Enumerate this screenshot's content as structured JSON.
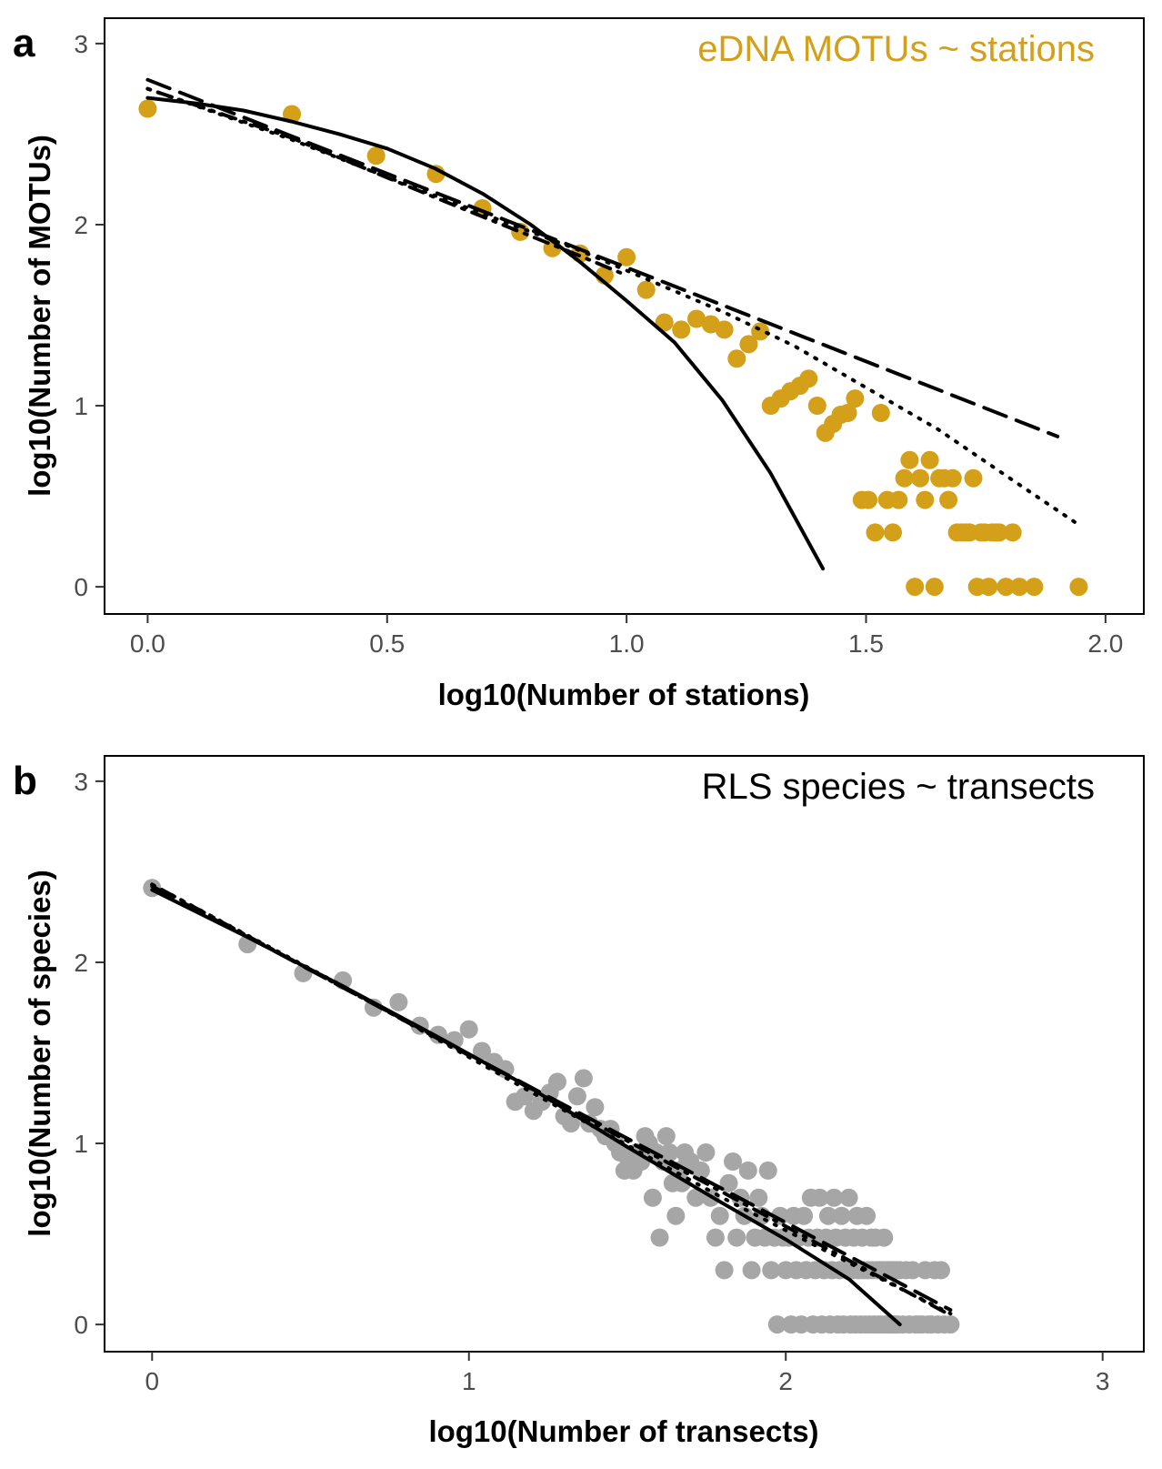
{
  "chart_data": [
    {
      "type": "scatter",
      "panel_label": "a",
      "annotation": "eDNA MOTUs ~ stations",
      "xlabel": "log10(Number of stations)",
      "ylabel": "log10(Number of MOTUs)",
      "xlim": [
        -0.09,
        2.08
      ],
      "ylim": [
        -0.15,
        3.14
      ],
      "xticks": [
        0.0,
        0.5,
        1.0,
        1.5,
        2.0
      ],
      "xtick_labels": [
        "0.0",
        "0.5",
        "1.0",
        "1.5",
        "2.0"
      ],
      "yticks": [
        0,
        1,
        2,
        3
      ],
      "ytick_labels": [
        "0",
        "1",
        "2",
        "3"
      ],
      "grid": false,
      "point_color": "#D4A019",
      "points": [
        [
          0.0,
          2.64
        ],
        [
          0.301,
          2.61
        ],
        [
          0.477,
          2.38
        ],
        [
          0.602,
          2.28
        ],
        [
          0.699,
          2.09
        ],
        [
          0.778,
          1.96
        ],
        [
          0.845,
          1.87
        ],
        [
          0.903,
          1.84
        ],
        [
          0.954,
          1.72
        ],
        [
          1.0,
          1.82
        ],
        [
          1.041,
          1.64
        ],
        [
          1.079,
          1.46
        ],
        [
          1.114,
          1.42
        ],
        [
          1.146,
          1.48
        ],
        [
          1.176,
          1.45
        ],
        [
          1.204,
          1.42
        ],
        [
          1.23,
          1.26
        ],
        [
          1.255,
          1.34
        ],
        [
          1.279,
          1.41
        ],
        [
          1.301,
          1.0
        ],
        [
          1.322,
          1.04
        ],
        [
          1.342,
          1.08
        ],
        [
          1.362,
          1.11
        ],
        [
          1.38,
          1.15
        ],
        [
          1.398,
          1.0
        ],
        [
          1.415,
          0.85
        ],
        [
          1.431,
          0.9
        ],
        [
          1.447,
          0.95
        ],
        [
          1.462,
          0.96
        ],
        [
          1.477,
          1.04
        ],
        [
          1.491,
          0.48
        ],
        [
          1.505,
          0.48
        ],
        [
          1.519,
          0.3
        ],
        [
          1.531,
          0.96
        ],
        [
          1.544,
          0.48
        ],
        [
          1.556,
          0.3
        ],
        [
          1.568,
          0.48
        ],
        [
          1.58,
          0.6
        ],
        [
          1.591,
          0.7
        ],
        [
          1.602,
          0.0
        ],
        [
          1.613,
          0.6
        ],
        [
          1.623,
          0.48
        ],
        [
          1.633,
          0.7
        ],
        [
          1.643,
          0.0
        ],
        [
          1.653,
          0.6
        ],
        [
          1.663,
          0.6
        ],
        [
          1.672,
          0.48
        ],
        [
          1.681,
          0.6
        ],
        [
          1.69,
          0.3
        ],
        [
          1.699,
          0.3
        ],
        [
          1.708,
          0.3
        ],
        [
          1.716,
          0.3
        ],
        [
          1.724,
          0.6
        ],
        [
          1.732,
          0.0
        ],
        [
          1.74,
          0.3
        ],
        [
          1.748,
          0.3
        ],
        [
          1.756,
          0.0
        ],
        [
          1.763,
          0.3
        ],
        [
          1.771,
          0.3
        ],
        [
          1.778,
          0.3
        ],
        [
          1.792,
          0.0
        ],
        [
          1.806,
          0.3
        ],
        [
          1.82,
          0.0
        ],
        [
          1.851,
          0.0
        ],
        [
          1.944,
          0.0
        ]
      ],
      "fit_lines": [
        {
          "style": "solid",
          "x": [
            0.0,
            0.1,
            0.2,
            0.3,
            0.4,
            0.5,
            0.6,
            0.7,
            0.8,
            0.9,
            1.0,
            1.1,
            1.2,
            1.3,
            1.35,
            1.41
          ],
          "y": [
            2.7,
            2.67,
            2.63,
            2.57,
            2.5,
            2.42,
            2.31,
            2.17,
            2.0,
            1.8,
            1.58,
            1.35,
            1.03,
            0.63,
            0.39,
            0.1
          ]
        },
        {
          "style": "dashed",
          "x": [
            0.0,
            1.9
          ],
          "y": [
            2.8,
            0.83
          ]
        },
        {
          "style": "dotdash",
          "x": [
            0.0,
            0.3,
            0.6,
            0.9,
            1.0
          ],
          "y": [
            2.75,
            2.48,
            2.15,
            1.83,
            1.72
          ]
        },
        {
          "style": "dotted",
          "x": [
            0.0,
            0.3,
            0.6,
            0.9,
            1.2,
            1.35,
            1.5,
            1.65,
            1.8,
            1.94
          ],
          "y": [
            2.75,
            2.47,
            2.16,
            1.86,
            1.52,
            1.33,
            1.1,
            0.87,
            0.6,
            0.35
          ]
        }
      ]
    },
    {
      "type": "scatter",
      "panel_label": "b",
      "annotation": "RLS species ~ transects",
      "xlabel": "log10(Number of transects)",
      "ylabel": "log10(Number of species)",
      "xlim": [
        -0.15,
        3.13
      ],
      "ylim": [
        -0.15,
        3.14
      ],
      "xticks": [
        0,
        1,
        2,
        3
      ],
      "xtick_labels": [
        "0",
        "1",
        "2",
        "3"
      ],
      "yticks": [
        0,
        1,
        2,
        3
      ],
      "ytick_labels": [
        "0",
        "1",
        "2",
        "3"
      ],
      "grid": false,
      "point_color": "#A6A6A6",
      "points": [
        [
          0.0,
          2.41
        ],
        [
          0.301,
          2.1
        ],
        [
          0.477,
          1.94
        ],
        [
          0.602,
          1.9
        ],
        [
          0.699,
          1.75
        ],
        [
          0.778,
          1.78
        ],
        [
          0.845,
          1.65
        ],
        [
          0.903,
          1.6
        ],
        [
          0.954,
          1.57
        ],
        [
          1.0,
          1.63
        ],
        [
          1.041,
          1.51
        ],
        [
          1.079,
          1.45
        ],
        [
          1.114,
          1.41
        ],
        [
          1.146,
          1.23
        ],
        [
          1.176,
          1.26
        ],
        [
          1.204,
          1.18
        ],
        [
          1.23,
          1.23
        ],
        [
          1.255,
          1.28
        ],
        [
          1.279,
          1.34
        ],
        [
          1.301,
          1.15
        ],
        [
          1.322,
          1.11
        ],
        [
          1.342,
          1.26
        ],
        [
          1.362,
          1.36
        ],
        [
          1.38,
          1.11
        ],
        [
          1.398,
          1.2
        ],
        [
          1.415,
          1.08
        ],
        [
          1.431,
          1.04
        ],
        [
          1.447,
          1.08
        ],
        [
          1.462,
          1.0
        ],
        [
          1.477,
          0.95
        ],
        [
          1.491,
          0.85
        ],
        [
          1.505,
          0.9
        ],
        [
          1.519,
          0.85
        ],
        [
          1.531,
          0.95
        ],
        [
          1.544,
          0.9
        ],
        [
          1.556,
          1.04
        ],
        [
          1.568,
          1.0
        ],
        [
          1.58,
          0.7
        ],
        [
          1.591,
          0.95
        ],
        [
          1.602,
          0.48
        ],
        [
          1.613,
          0.9
        ],
        [
          1.623,
          1.04
        ],
        [
          1.633,
          0.95
        ],
        [
          1.643,
          0.78
        ],
        [
          1.653,
          0.6
        ],
        [
          1.663,
          0.85
        ],
        [
          1.672,
          0.78
        ],
        [
          1.681,
          0.95
        ],
        [
          1.69,
          0.9
        ],
        [
          1.699,
          0.9
        ],
        [
          1.716,
          0.7
        ],
        [
          1.732,
          0.85
        ],
        [
          1.748,
          0.95
        ],
        [
          1.763,
          0.7
        ],
        [
          1.778,
          0.48
        ],
        [
          1.792,
          0.6
        ],
        [
          1.806,
          0.3
        ],
        [
          1.82,
          0.78
        ],
        [
          1.833,
          0.9
        ],
        [
          1.845,
          0.48
        ],
        [
          1.857,
          0.7
        ],
        [
          1.869,
          0.6
        ],
        [
          1.881,
          0.85
        ],
        [
          1.892,
          0.3
        ],
        [
          1.903,
          0.48
        ],
        [
          1.914,
          0.7
        ],
        [
          1.924,
          0.6
        ],
        [
          1.934,
          0.48
        ],
        [
          1.944,
          0.85
        ],
        [
          1.954,
          0.3
        ],
        [
          1.964,
          0.48
        ],
        [
          1.973,
          0.0
        ],
        [
          1.982,
          0.6
        ],
        [
          1.991,
          0.48
        ],
        [
          2.0,
          0.3
        ],
        [
          2.009,
          0.48
        ],
        [
          2.017,
          0.0
        ],
        [
          2.025,
          0.6
        ],
        [
          2.033,
          0.3
        ],
        [
          2.041,
          0.48
        ],
        [
          2.049,
          0.0
        ],
        [
          2.057,
          0.6
        ],
        [
          2.064,
          0.3
        ],
        [
          2.072,
          0.48
        ],
        [
          2.079,
          0.7
        ],
        [
          2.086,
          0.0
        ],
        [
          2.093,
          0.3
        ],
        [
          2.1,
          0.48
        ],
        [
          2.107,
          0.7
        ],
        [
          2.114,
          0.0
        ],
        [
          2.121,
          0.3
        ],
        [
          2.127,
          0.48
        ],
        [
          2.134,
          0.6
        ],
        [
          2.14,
          0.0
        ],
        [
          2.146,
          0.3
        ],
        [
          2.152,
          0.7
        ],
        [
          2.158,
          0.48
        ],
        [
          2.164,
          0.0
        ],
        [
          2.17,
          0.3
        ],
        [
          2.176,
          0.6
        ],
        [
          2.182,
          0.0
        ],
        [
          2.188,
          0.48
        ],
        [
          2.193,
          0.3
        ],
        [
          2.199,
          0.7
        ],
        [
          2.204,
          0.0
        ],
        [
          2.21,
          0.3
        ],
        [
          2.215,
          0.48
        ],
        [
          2.22,
          0.0
        ],
        [
          2.225,
          0.6
        ],
        [
          2.23,
          0.3
        ],
        [
          2.236,
          0.0
        ],
        [
          2.241,
          0.48
        ],
        [
          2.246,
          0.3
        ],
        [
          2.251,
          0.0
        ],
        [
          2.255,
          0.6
        ],
        [
          2.26,
          0.3
        ],
        [
          2.265,
          0.0
        ],
        [
          2.27,
          0.48
        ],
        [
          2.274,
          0.3
        ],
        [
          2.279,
          0.0
        ],
        [
          2.283,
          0.48
        ],
        [
          2.288,
          0.3
        ],
        [
          2.292,
          0.0
        ],
        [
          2.297,
          0.3
        ],
        [
          2.301,
          0.0
        ],
        [
          2.305,
          0.3
        ],
        [
          2.31,
          0.48
        ],
        [
          2.314,
          0.0
        ],
        [
          2.318,
          0.3
        ],
        [
          2.322,
          0.0
        ],
        [
          2.326,
          0.3
        ],
        [
          2.33,
          0.0
        ],
        [
          2.334,
          0.3
        ],
        [
          2.338,
          0.0
        ],
        [
          2.342,
          0.3
        ],
        [
          2.346,
          0.0
        ],
        [
          2.35,
          0.3
        ],
        [
          2.354,
          0.0
        ],
        [
          2.36,
          0.3
        ],
        [
          2.37,
          0.0
        ],
        [
          2.38,
          0.3
        ],
        [
          2.39,
          0.0
        ],
        [
          2.4,
          0.3
        ],
        [
          2.41,
          0.0
        ],
        [
          2.42,
          0.0
        ],
        [
          2.43,
          0.0
        ],
        [
          2.44,
          0.3
        ],
        [
          2.45,
          0.0
        ],
        [
          2.46,
          0.0
        ],
        [
          2.47,
          0.3
        ],
        [
          2.48,
          0.0
        ],
        [
          2.49,
          0.3
        ],
        [
          2.5,
          0.0
        ],
        [
          2.52,
          0.0
        ]
      ],
      "fit_lines": [
        {
          "style": "solid",
          "x": [
            0.0,
            0.3,
            0.6,
            0.9,
            1.2,
            1.5,
            1.8,
            2.0,
            2.2,
            2.36
          ],
          "y": [
            2.4,
            2.14,
            1.87,
            1.59,
            1.3,
            0.98,
            0.67,
            0.47,
            0.25,
            0.0
          ]
        },
        {
          "style": "dashed",
          "x": [
            0.0,
            2.52
          ],
          "y": [
            2.42,
            0.08
          ]
        },
        {
          "style": "dotdash",
          "x": [
            0.0,
            2.5
          ],
          "y": [
            2.43,
            0.07
          ]
        },
        {
          "style": "dotted",
          "x": [
            0.0,
            0.6,
            1.2,
            1.8,
            2.2,
            2.52
          ],
          "y": [
            2.43,
            1.87,
            1.28,
            0.7,
            0.34,
            0.06
          ]
        }
      ]
    }
  ]
}
